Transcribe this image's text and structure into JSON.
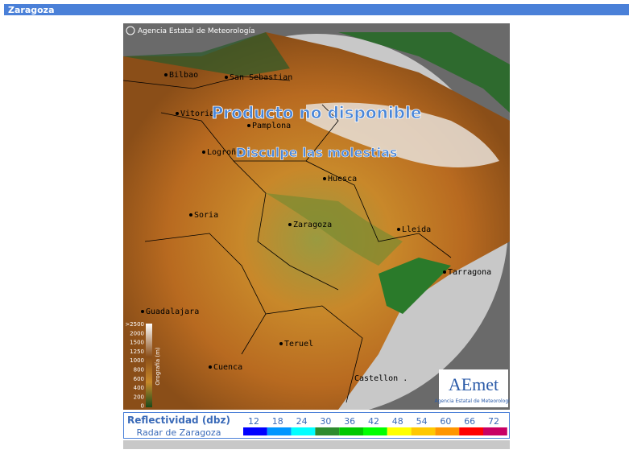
{
  "header": {
    "title": "Zaragoza"
  },
  "map": {
    "copyright": "Agencia Estatal de Meteorología",
    "notice": "Producto no disponible",
    "apology": "Disculpe las molestias",
    "cities": [
      "Bilbao",
      "San Sebastian",
      "Vitoria",
      "Pamplona",
      "Logroño",
      "Huesca",
      "Soria",
      "Zaragoza",
      "Lleida",
      "Tarragona",
      "Guadalajara",
      "Teruel",
      "Cuenca",
      "Castellon ."
    ],
    "orography": {
      "title": "Orografía (m)",
      "labels": [
        ">2500",
        "2000",
        "1500",
        "1250",
        "1000",
        "800",
        "600",
        "400",
        "200",
        "0"
      ]
    },
    "logo": {
      "name": "AEmet",
      "caption": "Agencia Estatal de Meteorología"
    }
  },
  "legend": {
    "title": "Reflectividad (dbz)",
    "subtitle": "Radar de Zaragoza",
    "levels": [
      {
        "value": 12,
        "color": "#0000ff"
      },
      {
        "value": 18,
        "color": "#0096ff"
      },
      {
        "value": 24,
        "color": "#00ffff"
      },
      {
        "value": 30,
        "color": "#2e8b2e"
      },
      {
        "value": 36,
        "color": "#00c800"
      },
      {
        "value": 42,
        "color": "#00ff00"
      },
      {
        "value": 48,
        "color": "#ffff00"
      },
      {
        "value": 54,
        "color": "#ffc800"
      },
      {
        "value": 60,
        "color": "#ff9600"
      },
      {
        "value": 66,
        "color": "#ff0000"
      },
      {
        "value": 72,
        "color": "#c80064"
      }
    ]
  }
}
